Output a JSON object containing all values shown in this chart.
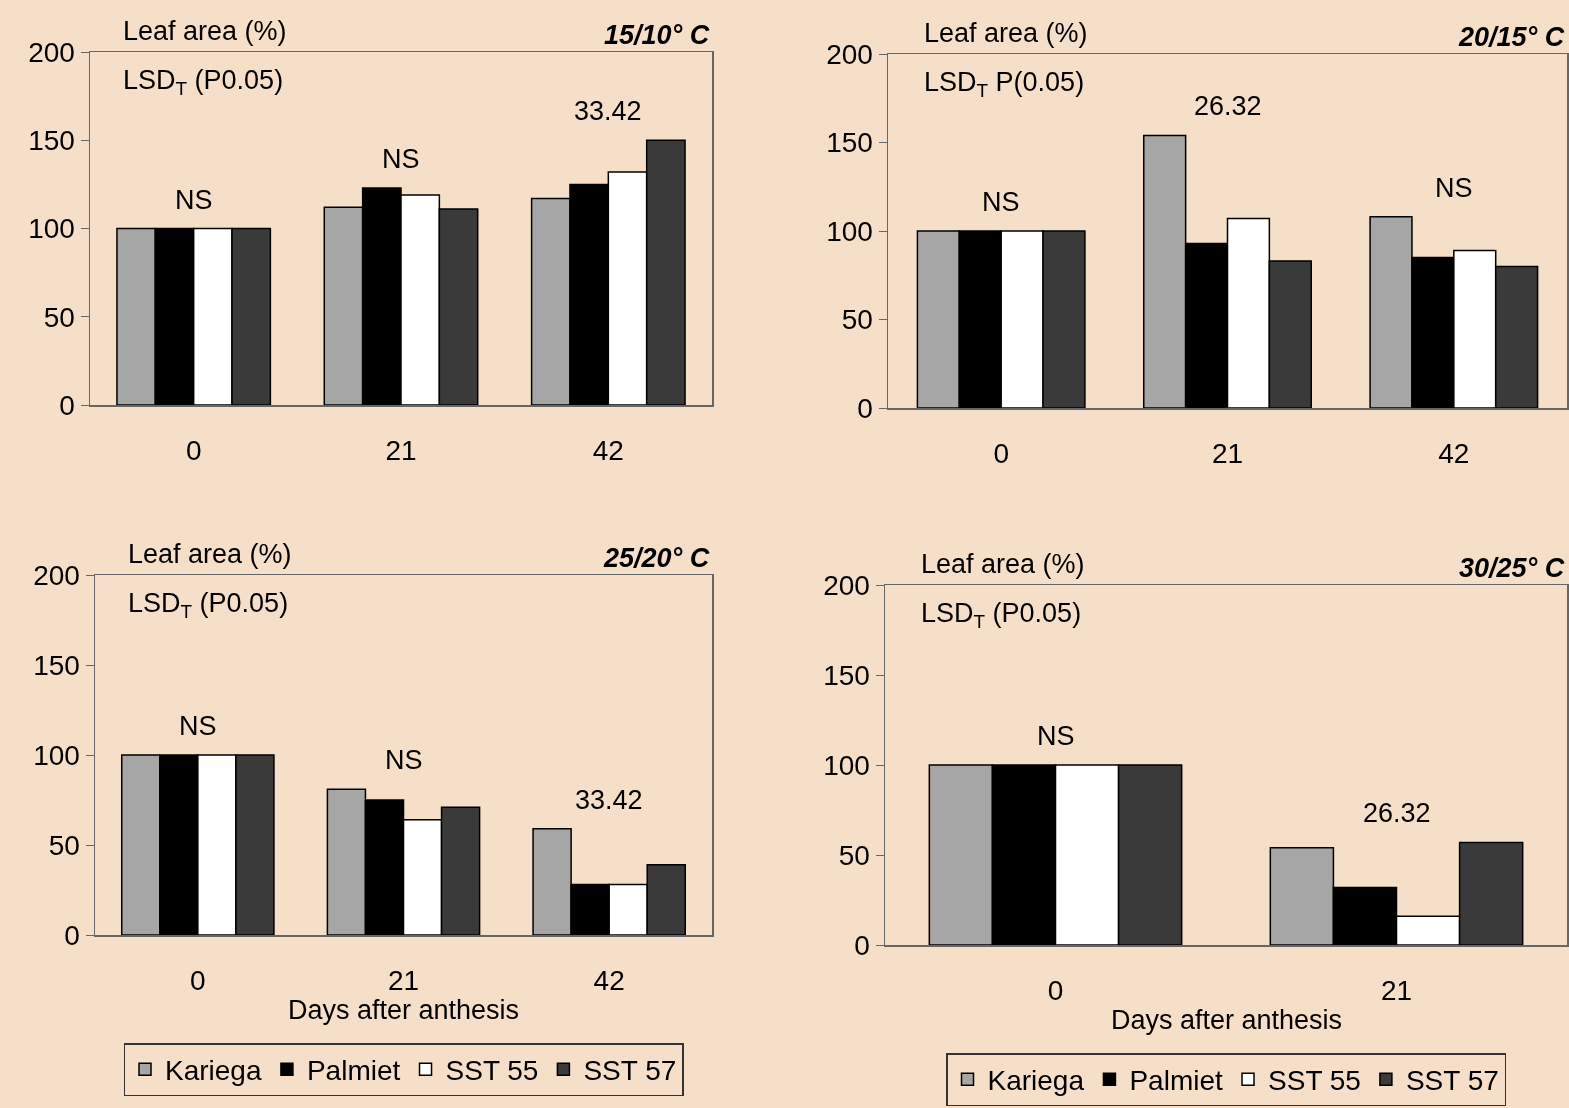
{
  "chart_data": [
    {
      "type": "bar",
      "title": "15/10° C",
      "ylabel": "Leaf area (%)",
      "categories": [
        "0",
        "21",
        "42"
      ],
      "ylim": [
        0,
        200
      ],
      "yticks": [
        0,
        50,
        100,
        150,
        200
      ],
      "grid": false,
      "legend": false,
      "series": [
        {
          "color": "#a6a6a6",
          "values": [
            100,
            112,
            117
          ]
        },
        {
          "color": "#000000",
          "values": [
            100,
            123,
            125
          ]
        },
        {
          "color": "#ffffff",
          "values": [
            100,
            119,
            132
          ]
        },
        {
          "color": "#3a3a3a",
          "values": [
            100,
            111,
            150
          ]
        }
      ],
      "annotations": [
        "LSD$_{T}$ (P0.05)",
        "NS",
        "NS",
        "33.42"
      ]
    },
    {
      "type": "bar",
      "title": "20/15° C",
      "ylabel": "Leaf area (%)",
      "categories": [
        "0",
        "21",
        "42"
      ],
      "ylim": [
        0,
        200
      ],
      "yticks": [
        0,
        50,
        100,
        150,
        200
      ],
      "grid": false,
      "legend": false,
      "series": [
        {
          "color": "#a6a6a6",
          "values": [
            100,
            154,
            108
          ]
        },
        {
          "color": "#000000",
          "values": [
            100,
            93,
            85
          ]
        },
        {
          "color": "#ffffff",
          "values": [
            100,
            107,
            89
          ]
        },
        {
          "color": "#3a3a3a",
          "values": [
            100,
            83,
            80
          ]
        }
      ],
      "annotations": [
        "LSD$_{T}$ P(0.05)",
        "NS",
        "26.32",
        "NS"
      ]
    },
    {
      "type": "bar",
      "title": "25/20° C",
      "ylabel": "Leaf area (%)",
      "xlabel": "Days after anthesis",
      "categories": [
        "0",
        "21",
        "42"
      ],
      "ylim": [
        0,
        200
      ],
      "yticks": [
        0,
        50,
        100,
        150,
        200
      ],
      "grid": false,
      "legend": "bottom",
      "series": [
        {
          "name": "Kariega",
          "color": "#a6a6a6",
          "values": [
            100,
            81,
            59
          ]
        },
        {
          "name": "Palmiet",
          "color": "#000000",
          "values": [
            100,
            75,
            28
          ]
        },
        {
          "name": "SST 55",
          "color": "#ffffff",
          "values": [
            100,
            64,
            28
          ]
        },
        {
          "name": "SST 57",
          "color": "#3a3a3a",
          "values": [
            100,
            71,
            39
          ]
        }
      ],
      "annotations": [
        "LSD$_{T}$ (P0.05)",
        "NS",
        "NS",
        "33.42"
      ]
    },
    {
      "type": "bar",
      "title": "30/25° C",
      "ylabel": "Leaf area (%)",
      "xlabel": "Days after anthesis",
      "categories": [
        "0",
        "21"
      ],
      "ylim": [
        0,
        200
      ],
      "yticks": [
        0,
        50,
        100,
        150,
        200
      ],
      "grid": false,
      "legend": "bottom",
      "series": [
        {
          "name": "Kariega",
          "color": "#a6a6a6",
          "values": [
            100,
            54
          ]
        },
        {
          "name": "Palmiet",
          "color": "#000000",
          "values": [
            100,
            32
          ]
        },
        {
          "name": "SST 55",
          "color": "#ffffff",
          "values": [
            100,
            16
          ]
        },
        {
          "name": "SST 57",
          "color": "#3a3a3a",
          "values": [
            100,
            57
          ]
        }
      ],
      "annotations": [
        "LSD$_{T}$ (P0.05)",
        "NS",
        "26.32"
      ]
    }
  ]
}
